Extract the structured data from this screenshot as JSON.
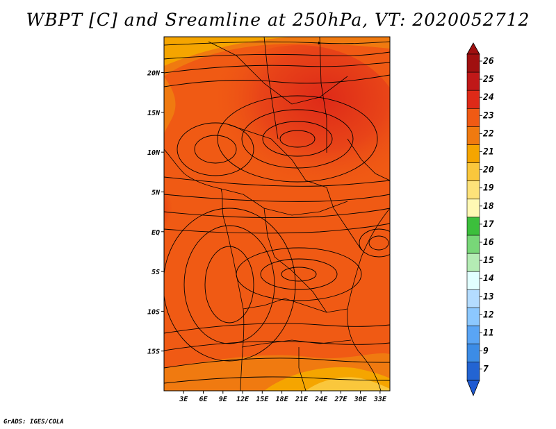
{
  "title": "WBPT [C] and Sreamline at 250hPa, VT: 2020052712",
  "credit": "GrADS: IGES/COLA",
  "map": {
    "lon_labels": [
      "3E",
      "6E",
      "9E",
      "12E",
      "15E",
      "18E",
      "21E",
      "24E",
      "27E",
      "30E",
      "33E"
    ],
    "lat_labels": [
      "20N",
      "15N",
      "10N",
      "5N",
      "EQ",
      "5S",
      "10S",
      "15S"
    ],
    "lon_range": [
      0,
      34.5
    ],
    "lat_range": [
      -20,
      24.5
    ],
    "field_dominant_color": "#f05a14",
    "streamline_color": "#000000"
  },
  "colorbar": {
    "levels": [
      {
        "label": "26",
        "color": "#a01010"
      },
      {
        "label": "25",
        "color": "#c01818"
      },
      {
        "label": "24",
        "color": "#de2a18"
      },
      {
        "label": "23",
        "color": "#f05a14"
      },
      {
        "label": "22",
        "color": "#f07a10"
      },
      {
        "label": "21",
        "color": "#f5a500"
      },
      {
        "label": "20",
        "color": "#fac73c"
      },
      {
        "label": "19",
        "color": "#fde27a"
      },
      {
        "label": "18",
        "color": "#fff8b4"
      },
      {
        "label": "17",
        "color": "#3cbf3c"
      },
      {
        "label": "16",
        "color": "#78d778"
      },
      {
        "label": "15",
        "color": "#b4ecb4"
      },
      {
        "label": "14",
        "color": "#e1ffff"
      },
      {
        "label": "13",
        "color": "#b4dcff"
      },
      {
        "label": "12",
        "color": "#8cc8ff"
      },
      {
        "label": "11",
        "color": "#5aa5f5"
      },
      {
        "label": "9",
        "color": "#3c8ce6"
      },
      {
        "label": "7",
        "color": "#2364d2"
      }
    ],
    "top_arrow_color": "#a01010",
    "bottom_arrow_color": "#1e5ad2"
  }
}
